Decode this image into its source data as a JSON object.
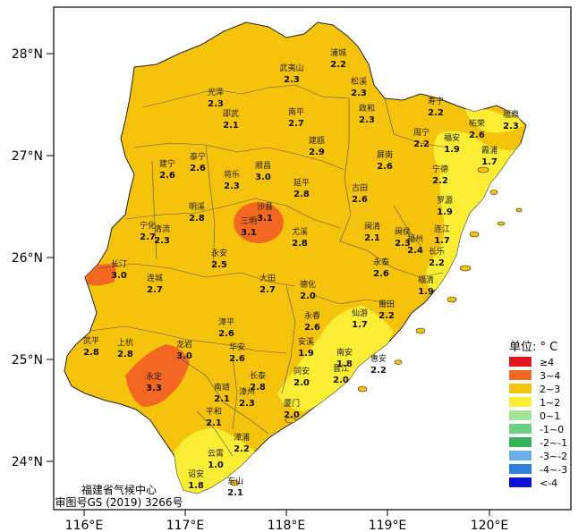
{
  "axes": {
    "y_ticks": [
      "28°N",
      "27°N",
      "26°N",
      "25°N",
      "24°N"
    ],
    "x_ticks": [
      "116°E",
      "117°E",
      "118°E",
      "119°E",
      "120°E"
    ]
  },
  "credit": {
    "line1": "福建省气候中心",
    "line2": "审图号GS (2019) 3266号"
  },
  "legend": {
    "title": "单位: ° C",
    "items": [
      {
        "label": "≥4",
        "color": "#e8141b"
      },
      {
        "label": "3~4",
        "color": "#f26722"
      },
      {
        "label": "2~3",
        "color": "#f5c20c"
      },
      {
        "label": "1~2",
        "color": "#fbec34"
      },
      {
        "label": "0~1",
        "color": "#a3e39a"
      },
      {
        "label": "-1~0",
        "color": "#6ccf86"
      },
      {
        "label": "-2~-1",
        "color": "#36b35a"
      },
      {
        "label": "-3~-2",
        "color": "#6aaee8"
      },
      {
        "label": "-4~-3",
        "color": "#2f7fd6"
      },
      {
        "label": "<-4",
        "color": "#0a10d8"
      }
    ]
  },
  "stations": [
    {
      "name": "浦城",
      "value": "2.2"
    },
    {
      "name": "武夷山",
      "value": "2.3"
    },
    {
      "name": "松溪",
      "value": "2.3"
    },
    {
      "name": "政和",
      "value": "2.3"
    },
    {
      "name": "光泽",
      "value": "2.3"
    },
    {
      "name": "邵武",
      "value": "2.1"
    },
    {
      "name": "南平",
      "value": "2.7"
    },
    {
      "name": "寿宁",
      "value": "2.2"
    },
    {
      "name": "柘荣",
      "value": "2.6"
    },
    {
      "name": "福鼎",
      "value": "2.3"
    },
    {
      "name": "周宁",
      "value": "2.2"
    },
    {
      "name": "福安",
      "value": "1.9"
    },
    {
      "name": "霞浦",
      "value": "1.7"
    },
    {
      "name": "建宁",
      "value": "2.6"
    },
    {
      "name": "泰宁",
      "value": "2.6"
    },
    {
      "name": "将乐",
      "value": "2.3"
    },
    {
      "name": "顺昌",
      "value": "3.0"
    },
    {
      "name": "建瓯",
      "value": "2.9"
    },
    {
      "name": "屏南",
      "value": "2.6"
    },
    {
      "name": "宁德",
      "value": "2.2"
    },
    {
      "name": "延平",
      "value": "2.8"
    },
    {
      "name": "古田",
      "value": "2.6"
    },
    {
      "name": "罗源",
      "value": "1.9"
    },
    {
      "name": "明溪",
      "value": "2.8"
    },
    {
      "name": "沙县",
      "value": "3.1"
    },
    {
      "name": "三明",
      "value": "3.1"
    },
    {
      "name": "宁化",
      "value": "2.7"
    },
    {
      "name": "清流",
      "value": "2.3"
    },
    {
      "name": "尤溪",
      "value": "2.8"
    },
    {
      "name": "闽清",
      "value": "2.1"
    },
    {
      "name": "闽侯",
      "value": "2.3"
    },
    {
      "name": "福州",
      "value": "2.4"
    },
    {
      "name": "连江",
      "value": "1.7"
    },
    {
      "name": "长乐",
      "value": "2.2"
    },
    {
      "name": "永安",
      "value": "2.5"
    },
    {
      "name": "长汀",
      "value": "3.0"
    },
    {
      "name": "连城",
      "value": "2.7"
    },
    {
      "name": "大田",
      "value": "2.7"
    },
    {
      "name": "永泰",
      "value": "2.6"
    },
    {
      "name": "福清",
      "value": "1.9"
    },
    {
      "name": "德化",
      "value": "2.0"
    },
    {
      "name": "永春",
      "value": "2.6"
    },
    {
      "name": "仙游",
      "value": "1.7"
    },
    {
      "name": "莆田",
      "value": "2.2"
    },
    {
      "name": "漳平",
      "value": "2.6"
    },
    {
      "name": "安溪",
      "value": "1.9"
    },
    {
      "name": "南安",
      "value": "1.8"
    },
    {
      "name": "武平",
      "value": "2.8"
    },
    {
      "name": "上杭",
      "value": "2.8"
    },
    {
      "name": "龙岩",
      "value": "3.0"
    },
    {
      "name": "华安",
      "value": "2.6"
    },
    {
      "name": "晋江",
      "value": "2.0"
    },
    {
      "name": "惠安",
      "value": "2.2"
    },
    {
      "name": "永定",
      "value": "3.3"
    },
    {
      "name": "长泰",
      "value": "2.8"
    },
    {
      "name": "同安",
      "value": "2.0"
    },
    {
      "name": "南靖",
      "value": "2.1"
    },
    {
      "name": "漳州",
      "value": "2.3"
    },
    {
      "name": "平和",
      "value": "2.1"
    },
    {
      "name": "厦门",
      "value": "2.0"
    },
    {
      "name": "漳浦",
      "value": "2.2"
    },
    {
      "name": "云霄",
      "value": "1.0"
    },
    {
      "name": "诏安",
      "value": "1.8"
    },
    {
      "name": "东山",
      "value": "2.1"
    }
  ]
}
